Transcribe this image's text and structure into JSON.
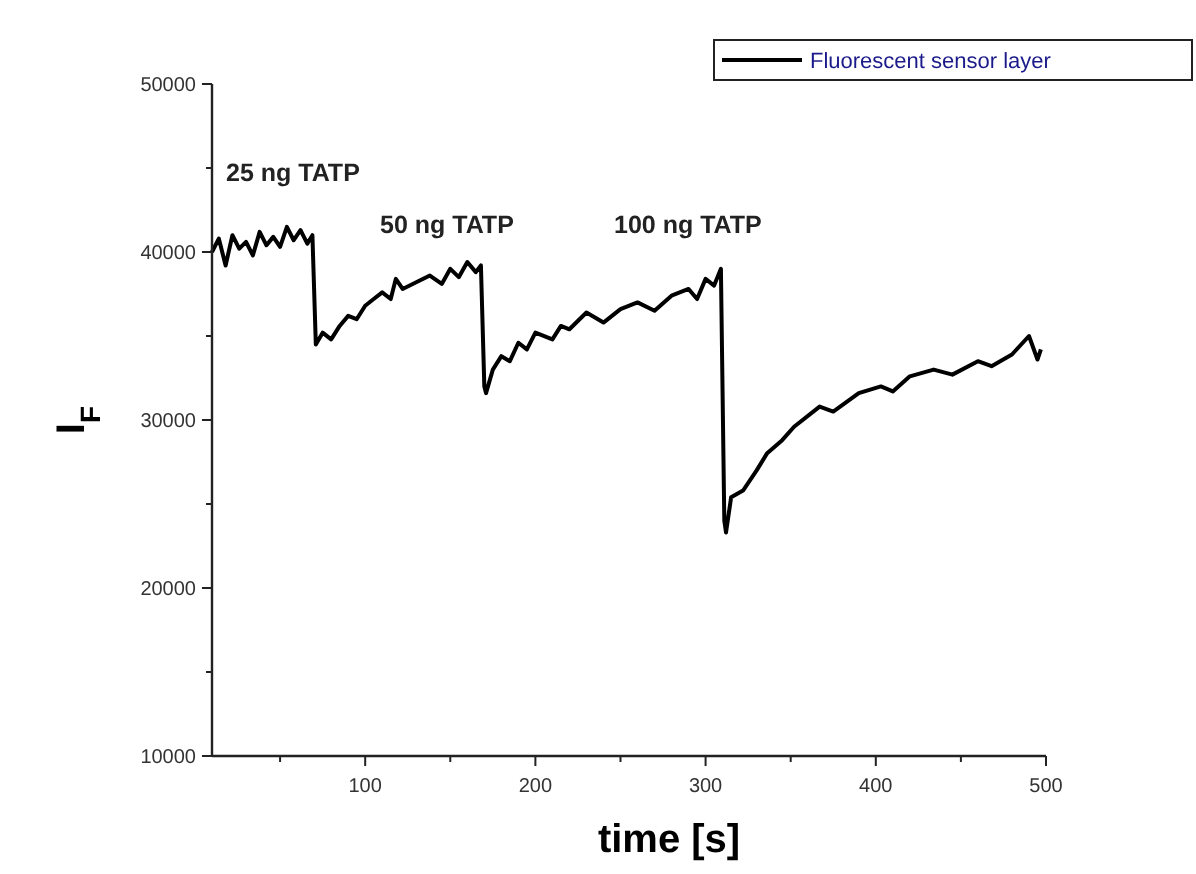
{
  "chart_data": {
    "type": "line",
    "xlabel": "time [s]",
    "ylabel": "I$_{F}$",
    "xlim": [
      10,
      500
    ],
    "ylim": [
      10000,
      50000
    ],
    "xticks": [
      {
        "value": 50,
        "label": null
      },
      100,
      {
        "value": 150,
        "label": null
      },
      200,
      {
        "value": 250,
        "label": null
      },
      300,
      {
        "value": 350,
        "label": null
      },
      400,
      {
        "value": 450,
        "label": null
      },
      500
    ],
    "yticks": [
      10000,
      {
        "value": 15000,
        "label": null
      },
      20000,
      {
        "value": 25000,
        "label": null
      },
      30000,
      {
        "value": 35000,
        "label": null
      },
      40000,
      {
        "value": 45000,
        "label": null
      },
      50000
    ],
    "grid": false,
    "legend": "top right",
    "marker": "none",
    "line_style": "solid",
    "annotations": [
      "25 ng TATP",
      "50 ng TATP",
      "100 ng TATP"
    ],
    "series": [
      {
        "name": "Fluorescent sensor layer",
        "color": "#000000",
        "x": [
          10,
          14,
          18,
          22,
          26,
          30,
          34,
          38,
          42,
          46,
          50,
          54,
          58,
          62,
          66,
          69,
          71,
          75,
          80,
          85,
          90,
          95,
          100,
          105,
          110,
          115,
          118,
          122,
          130,
          138,
          145,
          150,
          155,
          160,
          165,
          168,
          170,
          171,
          175,
          180,
          185,
          190,
          195,
          200,
          210,
          215,
          220,
          230,
          240,
          250,
          260,
          270,
          280,
          290,
          295,
          300,
          305,
          309,
          311,
          312,
          315,
          322,
          330,
          336,
          345,
          352,
          367,
          375,
          390,
          403,
          410,
          420,
          434,
          445,
          460,
          468,
          480,
          490,
          495,
          497
        ],
        "values": [
          40000,
          40800,
          39200,
          41000,
          40200,
          40600,
          39800,
          41200,
          40400,
          40900,
          40300,
          41500,
          40700,
          41300,
          40500,
          41000,
          34500,
          35200,
          34800,
          35600,
          36200,
          36000,
          36800,
          37200,
          37600,
          37200,
          38400,
          37800,
          38200,
          38600,
          38100,
          39000,
          38500,
          39400,
          38800,
          39200,
          32000,
          31600,
          33000,
          33800,
          33500,
          34600,
          34200,
          35200,
          34800,
          35600,
          35400,
          36400,
          35800,
          36600,
          37000,
          36500,
          37400,
          37800,
          37200,
          38400,
          38000,
          39000,
          24000,
          23300,
          25400,
          25800,
          27000,
          28000,
          28800,
          29600,
          30800,
          30500,
          31600,
          32000,
          31700,
          32600,
          33000,
          32700,
          33500,
          33200,
          33900,
          35000,
          33600,
          34200
        ]
      }
    ]
  }
}
